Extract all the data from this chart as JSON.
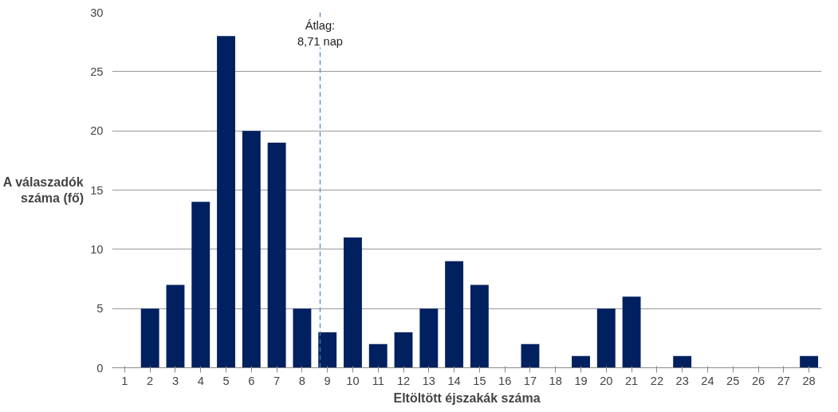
{
  "chart_data": {
    "type": "bar",
    "xlabel": "Eltöltött éjszakák száma",
    "ylabel": "A válaszadók\nszáma (fő)",
    "x": [
      1,
      2,
      3,
      4,
      5,
      6,
      7,
      8,
      9,
      10,
      11,
      12,
      13,
      14,
      15,
      16,
      17,
      18,
      19,
      20,
      21,
      22,
      23,
      24,
      25,
      26,
      27,
      28
    ],
    "values": [
      0,
      5,
      7,
      14,
      28,
      20,
      19,
      5,
      3,
      11,
      2,
      3,
      5,
      9,
      7,
      0,
      2,
      0,
      1,
      5,
      6,
      0,
      1,
      0,
      0,
      0,
      0,
      1
    ],
    "color": "#002060",
    "xlim": [
      0.5,
      28.5
    ],
    "xticks": [
      1,
      2,
      3,
      4,
      5,
      6,
      7,
      8,
      9,
      10,
      11,
      12,
      13,
      14,
      15,
      16,
      17,
      18,
      19,
      20,
      21,
      22,
      23,
      24,
      25,
      26,
      27,
      28
    ],
    "ylim": [
      0,
      30
    ],
    "yticks": [
      0,
      5,
      10,
      15,
      20,
      25,
      30
    ],
    "grid": "y",
    "ref_lines": [
      {
        "axis": "x",
        "value": 8.71,
        "label": "Átlag:\n8,71 nap",
        "color": "#4f81bd",
        "line_style": "dashed"
      }
    ]
  }
}
